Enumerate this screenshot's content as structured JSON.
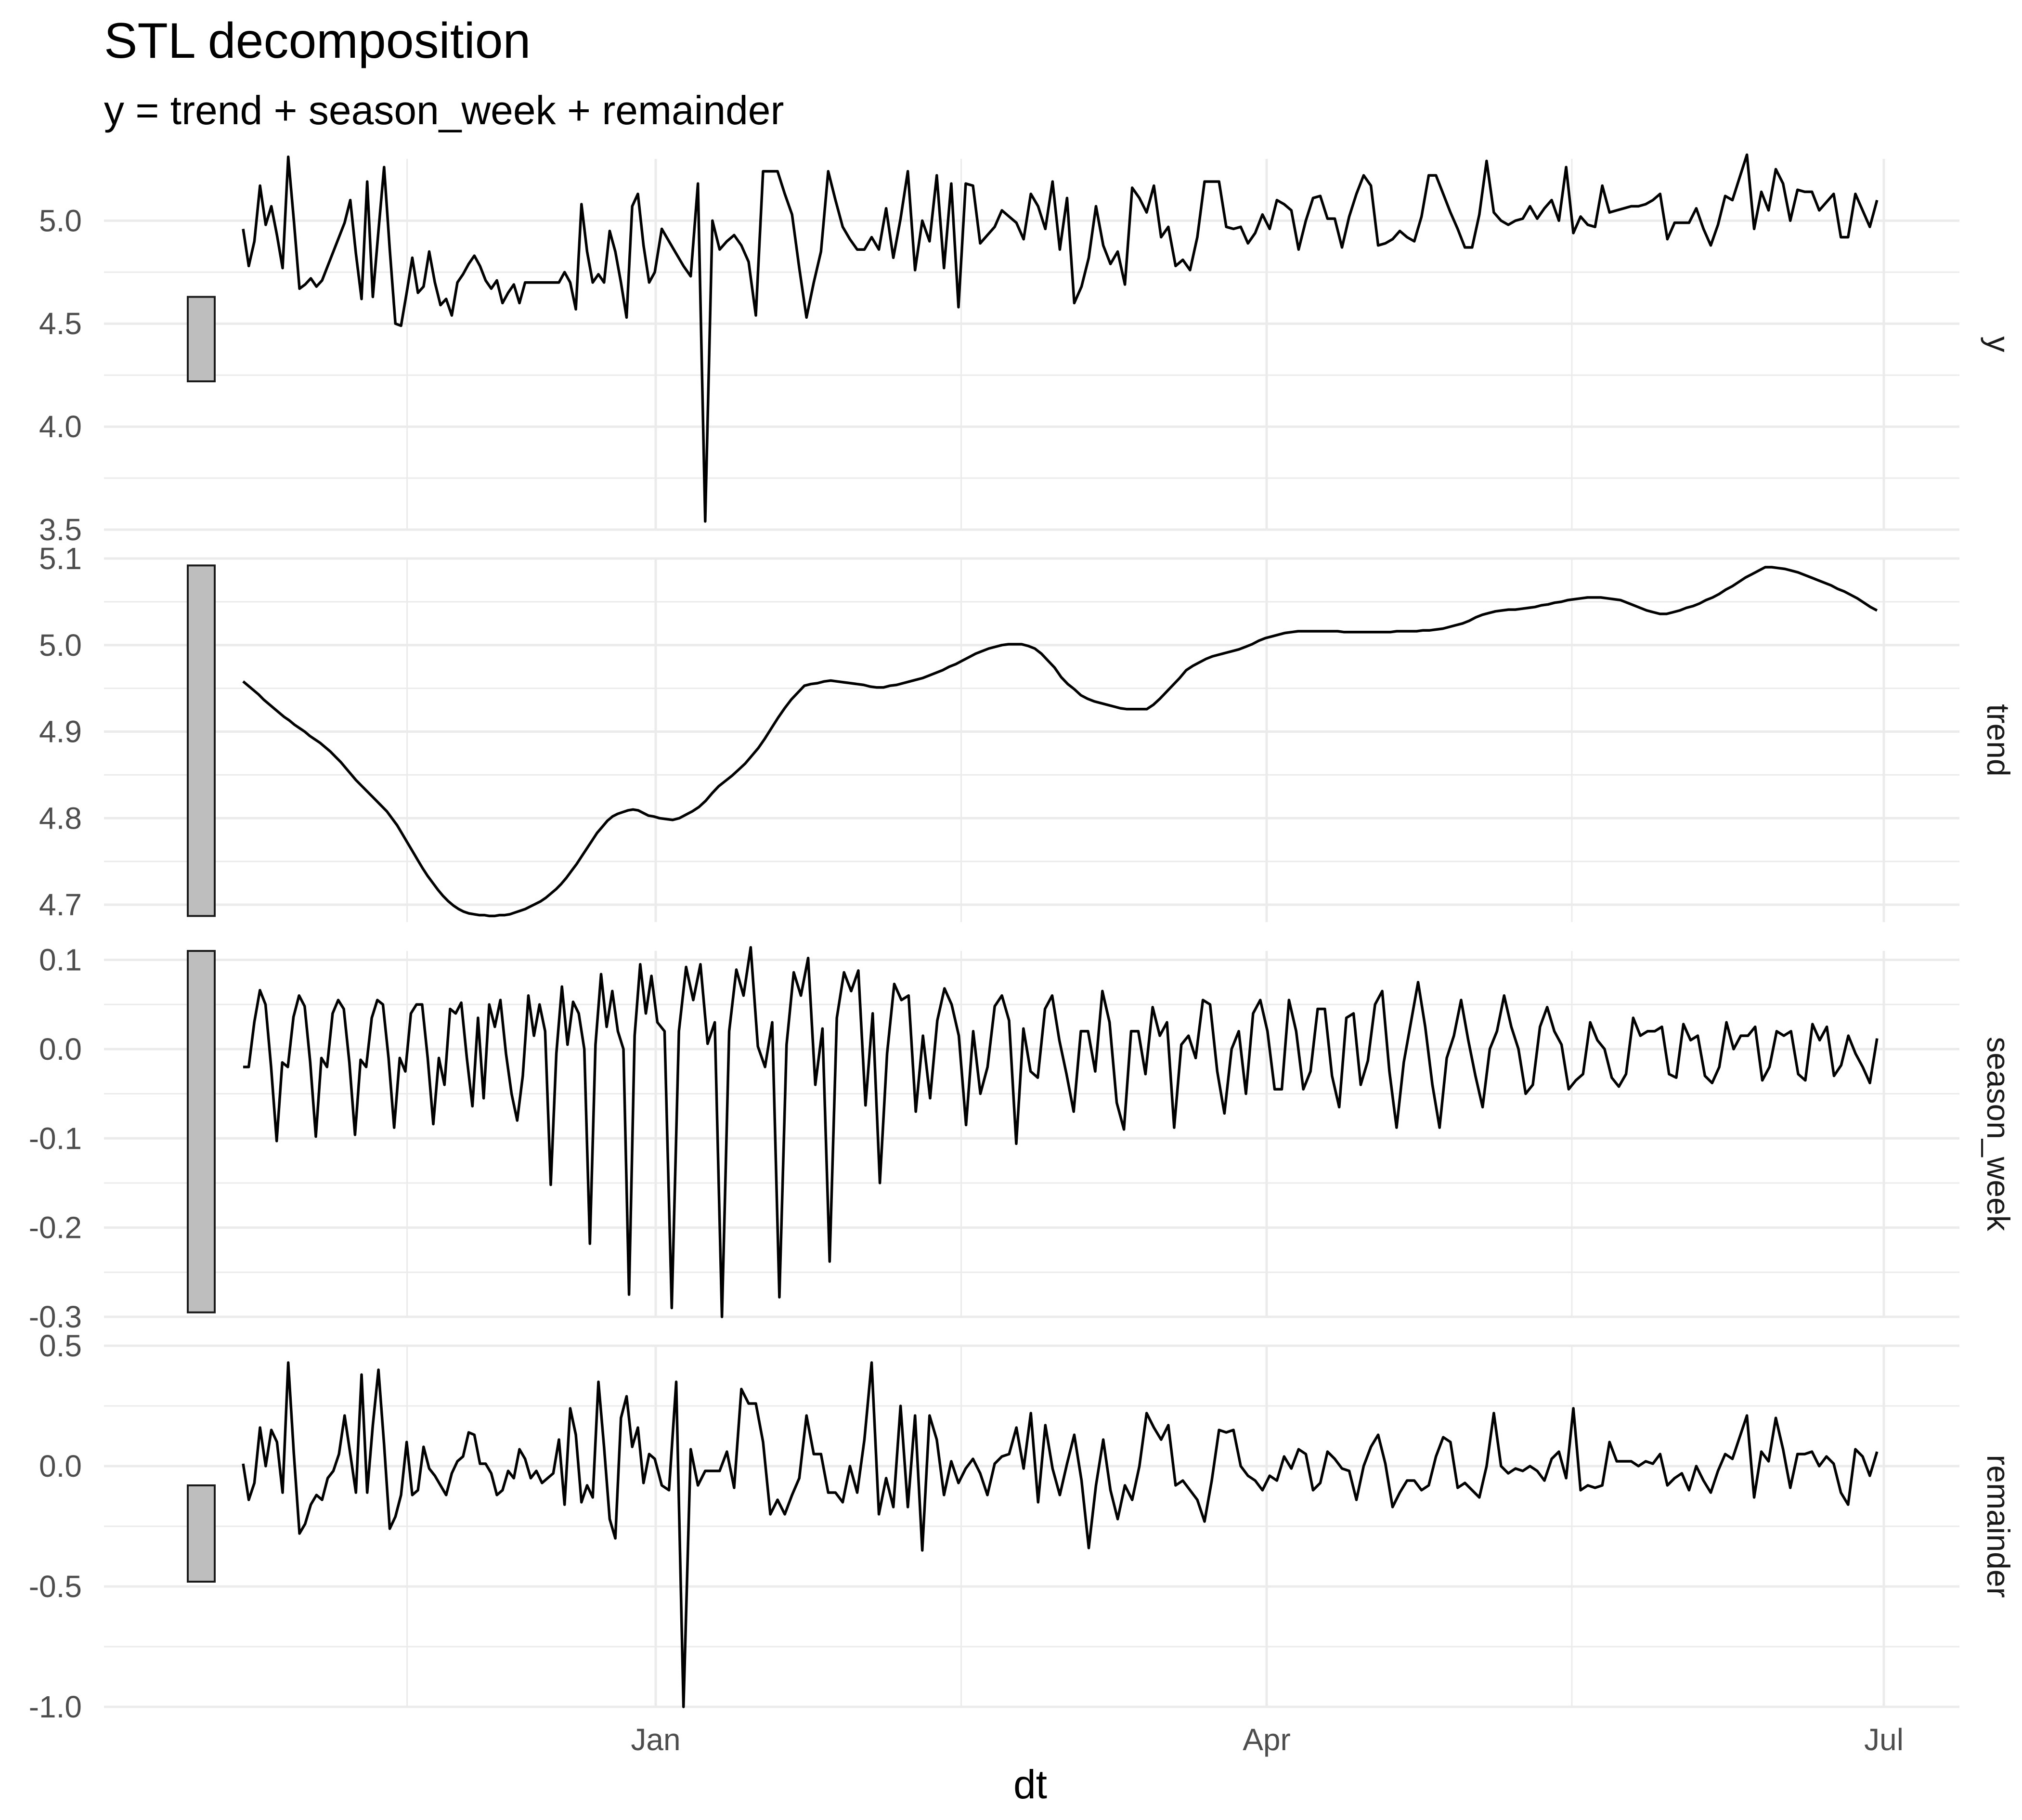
{
  "chart_data": {
    "type": "line",
    "title": "STL decomposition",
    "subtitle": "y = trend + season_week + remainder",
    "xlabel": "dt",
    "x_tick_labels": [
      "Jan",
      "Apr",
      "Jul"
    ],
    "x_start": "2022-10-15",
    "x_end": "2023-06-30",
    "grid": true,
    "panels": [
      {
        "name": "y",
        "ylim": [
          3.5,
          5.3
        ],
        "yticks": [
          "3.5",
          "4.0",
          "4.5",
          "5.0"
        ],
        "ytick_values": [
          3.5,
          4.0,
          4.5,
          5.0
        ],
        "scale_bar": [
          4.22,
          4.63
        ],
        "values": [
          4.96,
          4.78,
          4.9,
          5.17,
          4.98,
          5.07,
          4.93,
          4.77,
          5.31,
          5.0,
          4.67,
          4.69,
          4.72,
          4.68,
          4.71,
          4.78,
          4.85,
          4.92,
          4.99,
          5.1,
          4.84,
          4.62,
          5.19,
          4.63,
          4.95,
          5.26,
          4.86,
          4.5,
          4.49,
          4.65,
          4.82,
          4.65,
          4.68,
          4.85,
          4.7,
          4.59,
          4.62,
          4.54,
          4.7,
          4.74,
          4.79,
          4.83,
          4.78,
          4.71,
          4.67,
          4.71,
          4.6,
          4.65,
          4.69,
          4.6,
          4.7,
          4.7,
          4.7,
          4.7,
          4.7,
          4.7,
          4.7,
          4.75,
          4.7,
          4.57,
          5.08,
          4.85,
          4.7,
          4.74,
          4.7,
          4.95,
          4.85,
          4.7,
          4.53,
          5.07,
          5.13,
          4.88,
          4.7,
          4.75,
          4.96,
          4.9,
          4.84,
          4.78,
          4.73,
          5.18,
          3.54,
          5.0,
          4.86,
          4.9,
          4.93,
          4.88,
          4.8,
          4.54,
          5.24,
          5.24,
          5.24,
          5.13,
          5.03,
          4.77,
          4.53,
          4.7,
          4.85,
          5.24,
          5.1,
          4.97,
          4.91,
          4.86,
          4.86,
          4.92,
          4.86,
          5.06,
          4.82,
          5.01,
          5.24,
          4.76,
          5.0,
          4.9,
          5.22,
          4.77,
          5.18,
          4.58,
          5.18,
          5.17,
          4.89,
          4.93,
          4.97,
          5.05,
          5.02,
          4.99,
          4.91,
          5.13,
          5.07,
          4.96,
          5.19,
          4.86,
          5.11,
          4.6,
          4.68,
          4.82,
          5.07,
          4.88,
          4.79,
          4.85,
          4.69,
          5.16,
          5.11,
          5.04,
          5.17,
          4.92,
          4.97,
          4.78,
          4.81,
          4.76,
          4.92,
          5.19,
          5.19,
          5.19,
          4.97,
          4.96,
          4.97,
          4.89,
          4.94,
          5.03,
          4.96,
          5.1,
          5.08,
          5.05,
          4.86,
          5.0,
          5.11,
          5.12,
          5.01,
          5.01,
          4.87,
          5.02,
          5.13,
          5.22,
          5.17,
          4.88,
          4.89,
          4.91,
          4.95,
          4.92,
          4.9,
          5.02,
          5.22,
          5.22,
          5.13,
          5.04,
          4.96,
          4.87,
          4.87,
          5.03,
          5.29,
          5.04,
          5.0,
          4.98,
          5.0,
          5.01,
          5.07,
          5.01,
          5.06,
          5.1,
          5.0,
          5.26,
          4.94,
          5.02,
          4.98,
          4.97,
          5.17,
          5.04,
          5.05,
          5.06,
          5.07,
          5.07,
          5.08,
          5.1,
          5.13,
          4.91,
          4.99,
          4.99,
          4.99,
          5.06,
          4.96,
          4.88,
          4.98,
          5.12,
          5.1,
          5.21,
          5.32,
          4.96,
          5.14,
          5.05,
          5.25,
          5.18,
          5.0,
          5.15,
          5.14,
          5.14,
          5.05,
          5.09,
          5.13,
          4.92,
          4.92,
          5.13,
          5.05,
          4.97,
          5.1
        ]
      },
      {
        "name": "trend",
        "ylim": [
          4.68,
          5.1
        ],
        "yticks": [
          "4.7",
          "4.8",
          "4.9",
          "5.0",
          "5.1"
        ],
        "ytick_values": [
          4.7,
          4.8,
          4.9,
          5.0,
          5.1
        ],
        "scale_bar": [
          4.687,
          5.092
        ],
        "values": [
          4.958,
          4.953,
          4.948,
          4.943,
          4.937,
          4.932,
          4.927,
          4.922,
          4.917,
          4.913,
          4.908,
          4.904,
          4.9,
          4.895,
          4.891,
          4.887,
          4.882,
          4.877,
          4.871,
          4.865,
          4.858,
          4.851,
          4.844,
          4.838,
          4.832,
          4.826,
          4.82,
          4.814,
          4.808,
          4.8,
          4.792,
          4.782,
          4.772,
          4.762,
          4.752,
          4.742,
          4.733,
          4.725,
          4.717,
          4.71,
          4.704,
          4.699,
          4.695,
          4.692,
          4.69,
          4.689,
          4.688,
          4.688,
          4.687,
          4.687,
          4.688,
          4.688,
          4.689,
          4.691,
          4.693,
          4.695,
          4.698,
          4.701,
          4.704,
          4.708,
          4.713,
          4.718,
          4.724,
          4.731,
          4.739,
          4.747,
          4.756,
          4.765,
          4.774,
          4.783,
          4.79,
          4.797,
          4.802,
          4.805,
          4.807,
          4.809,
          4.81,
          4.809,
          4.806,
          4.803,
          4.802,
          4.8,
          4.799,
          4.798,
          4.8,
          4.804,
          4.808,
          4.813,
          4.82,
          4.829,
          4.837,
          4.843,
          4.849,
          4.856,
          4.863,
          4.872,
          4.881,
          4.892,
          4.904,
          4.916,
          4.927,
          4.937,
          4.945,
          4.953,
          4.955,
          4.956,
          4.958,
          4.959,
          4.958,
          4.957,
          4.956,
          4.955,
          4.954,
          4.952,
          4.951,
          4.951,
          4.953,
          4.954,
          4.956,
          4.958,
          4.96,
          4.962,
          4.965,
          4.968,
          4.971,
          4.975,
          4.978,
          4.982,
          4.986,
          4.99,
          4.993,
          4.996,
          4.998,
          5.0,
          5.001,
          5.001,
          5.001,
          4.999,
          4.996,
          4.99,
          4.982,
          4.974,
          4.963,
          4.955,
          4.949,
          4.942,
          4.938,
          4.935,
          4.933,
          4.931,
          4.929,
          4.927,
          4.926,
          4.926,
          4.926,
          4.926,
          4.931,
          4.938,
          4.946,
          4.954,
          4.962,
          4.971,
          4.976,
          4.98,
          4.984,
          4.987,
          4.989,
          4.991,
          4.993,
          4.995,
          4.998,
          5.001,
          5.005,
          5.008,
          5.01,
          5.012,
          5.014,
          5.015,
          5.016,
          5.016,
          5.016,
          5.016,
          5.016,
          5.016,
          5.016,
          5.015,
          5.015,
          5.015,
          5.015,
          5.015,
          5.015,
          5.015,
          5.015,
          5.016,
          5.016,
          5.016,
          5.016,
          5.017,
          5.017,
          5.018,
          5.019,
          5.021,
          5.023,
          5.025,
          5.028,
          5.032,
          5.035,
          5.037,
          5.039,
          5.04,
          5.041,
          5.041,
          5.042,
          5.043,
          5.044,
          5.046,
          5.047,
          5.049,
          5.05,
          5.052,
          5.053,
          5.054,
          5.055,
          5.055,
          5.055,
          5.054,
          5.053,
          5.052,
          5.049,
          5.046,
          5.043,
          5.04,
          5.038,
          5.036,
          5.036,
          5.038,
          5.04,
          5.043,
          5.045,
          5.048,
          5.052,
          5.055,
          5.059,
          5.064,
          5.068,
          5.073,
          5.078,
          5.082,
          5.086,
          5.09,
          5.09,
          5.089,
          5.088,
          5.086,
          5.084,
          5.081,
          5.078,
          5.075,
          5.072,
          5.069,
          5.065,
          5.062,
          5.058,
          5.054,
          5.049,
          5.044,
          5.04
        ]
      },
      {
        "name": "season_week",
        "ylim": [
          -0.3,
          0.11
        ],
        "yticks": [
          "-0.3",
          "-0.2",
          "-0.1",
          "0.0",
          "0.1"
        ],
        "ytick_values": [
          -0.3,
          -0.2,
          -0.1,
          0.0,
          0.1
        ],
        "scale_bar": [
          -0.295,
          0.11
        ],
        "values": [
          -0.02,
          -0.02,
          0.03,
          0.066,
          0.05,
          -0.02,
          -0.103,
          -0.015,
          -0.02,
          0.036,
          0.06,
          0.048,
          -0.015,
          -0.098,
          -0.01,
          -0.02,
          0.04,
          0.055,
          0.045,
          -0.015,
          -0.096,
          -0.012,
          -0.02,
          0.035,
          0.055,
          0.05,
          -0.01,
          -0.088,
          -0.01,
          -0.025,
          0.04,
          0.05,
          0.05,
          -0.01,
          -0.084,
          -0.01,
          -0.04,
          0.045,
          0.04,
          0.052,
          -0.01,
          -0.064,
          0.035,
          -0.055,
          0.05,
          0.025,
          0.055,
          -0.005,
          -0.05,
          -0.08,
          -0.03,
          0.06,
          0.015,
          0.05,
          0.02,
          -0.152,
          -0.005,
          0.07,
          0.005,
          0.053,
          0.04,
          0.0,
          -0.218,
          0.005,
          0.084,
          0.025,
          0.065,
          0.02,
          0.0,
          -0.275,
          0.015,
          0.095,
          0.04,
          0.082,
          0.03,
          0.02,
          -0.29,
          0.02,
          0.092,
          0.055,
          0.095,
          0.006,
          0.03,
          -0.3,
          0.02,
          0.089,
          0.06,
          0.114,
          0.003,
          -0.02,
          0.03,
          -0.278,
          0.005,
          0.086,
          0.06,
          0.102,
          -0.04,
          0.023,
          -0.238,
          0.035,
          0.086,
          0.065,
          0.088,
          -0.063,
          0.04,
          -0.15,
          -0.005,
          0.073,
          0.055,
          0.06,
          -0.07,
          0.015,
          -0.055,
          0.032,
          0.068,
          0.05,
          0.015,
          -0.085,
          0.02,
          -0.05,
          -0.02,
          0.048,
          0.06,
          0.032,
          -0.106,
          0.023,
          -0.025,
          -0.032,
          0.045,
          0.06,
          0.01,
          -0.028,
          -0.07,
          0.02,
          0.02,
          -0.025,
          0.065,
          0.03,
          -0.06,
          -0.09,
          0.02,
          0.02,
          -0.028,
          0.047,
          0.015,
          0.03,
          -0.088,
          0.005,
          0.015,
          -0.01,
          0.055,
          0.05,
          -0.025,
          -0.072,
          0.0,
          0.02,
          -0.05,
          0.04,
          0.055,
          0.02,
          -0.045,
          -0.045,
          0.055,
          0.02,
          -0.045,
          -0.025,
          0.045,
          0.045,
          -0.03,
          -0.065,
          0.035,
          0.04,
          -0.04,
          -0.013,
          0.05,
          0.065,
          -0.025,
          -0.088,
          -0.015,
          0.03,
          0.075,
          0.025,
          -0.04,
          -0.088,
          -0.01,
          0.015,
          0.055,
          0.01,
          -0.03,
          -0.065,
          0.0,
          0.02,
          0.06,
          0.025,
          0.0,
          -0.05,
          -0.04,
          0.025,
          0.047,
          0.02,
          0.005,
          -0.045,
          -0.035,
          -0.028,
          0.03,
          0.01,
          0.0,
          -0.032,
          -0.042,
          -0.028,
          0.035,
          0.015,
          0.02,
          0.02,
          0.025,
          -0.028,
          -0.032,
          0.028,
          0.01,
          0.015,
          -0.03,
          -0.038,
          -0.02,
          0.03,
          0.0,
          0.015,
          0.015,
          0.025,
          -0.035,
          -0.02,
          0.02,
          0.015,
          0.02,
          -0.028,
          -0.035,
          0.028,
          0.01,
          0.025,
          -0.03,
          -0.018,
          0.015,
          -0.005,
          -0.02,
          -0.038,
          0.012
        ]
      },
      {
        "name": "remainder",
        "ylim": [
          -1.0,
          0.5
        ],
        "yticks": [
          "-1.0",
          "-0.5",
          "0.0",
          "0.5"
        ],
        "ytick_values": [
          -1.0,
          -0.5,
          0.0,
          0.5
        ],
        "scale_bar": [
          -0.48,
          -0.08
        ],
        "values": [
          0.01,
          -0.14,
          -0.07,
          0.16,
          0.0,
          0.15,
          0.1,
          -0.11,
          0.43,
          0.05,
          -0.28,
          -0.24,
          -0.16,
          -0.12,
          -0.14,
          -0.05,
          -0.02,
          0.05,
          0.21,
          0.05,
          -0.11,
          0.38,
          -0.11,
          0.17,
          0.4,
          0.09,
          -0.26,
          -0.21,
          -0.12,
          0.1,
          -0.12,
          -0.1,
          0.08,
          -0.01,
          -0.04,
          -0.08,
          -0.12,
          -0.03,
          0.02,
          0.04,
          0.14,
          0.13,
          0.01,
          0.01,
          -0.03,
          -0.12,
          -0.1,
          -0.02,
          -0.05,
          0.07,
          0.03,
          -0.05,
          -0.02,
          -0.07,
          -0.05,
          -0.03,
          0.11,
          -0.16,
          0.24,
          0.13,
          -0.15,
          -0.08,
          -0.13,
          0.35,
          0.08,
          -0.22,
          -0.3,
          0.2,
          0.29,
          0.08,
          0.16,
          -0.07,
          0.05,
          0.03,
          -0.08,
          -0.1,
          0.35,
          -1.0,
          0.07,
          -0.08,
          -0.02,
          -0.02,
          -0.02,
          0.06,
          -0.09,
          0.32,
          0.26,
          0.26,
          0.1,
          -0.2,
          -0.14,
          -0.2,
          -0.12,
          -0.05,
          0.21,
          0.05,
          0.05,
          -0.11,
          -0.11,
          -0.15,
          0.0,
          -0.11,
          0.11,
          0.43,
          -0.2,
          -0.05,
          -0.17,
          0.25,
          -0.17,
          0.21,
          -0.35,
          0.21,
          0.11,
          -0.12,
          0.02,
          -0.07,
          -0.01,
          0.03,
          -0.03,
          -0.12,
          0.01,
          0.04,
          0.05,
          0.16,
          -0.01,
          0.22,
          -0.15,
          0.17,
          -0.01,
          -0.12,
          0.01,
          0.13,
          -0.06,
          -0.34,
          -0.08,
          0.11,
          -0.1,
          -0.22,
          -0.08,
          -0.14,
          0.0,
          0.22,
          0.16,
          0.11,
          0.17,
          -0.08,
          -0.06,
          -0.1,
          -0.14,
          -0.23,
          -0.06,
          0.15,
          0.14,
          0.15,
          0.0,
          -0.04,
          -0.06,
          -0.1,
          -0.04,
          -0.06,
          0.04,
          -0.01,
          0.07,
          0.05,
          -0.1,
          -0.07,
          0.06,
          0.03,
          -0.01,
          -0.02,
          -0.14,
          0.0,
          0.08,
          0.13,
          0.01,
          -0.17,
          -0.11,
          -0.06,
          -0.06,
          -0.1,
          -0.08,
          0.04,
          0.12,
          0.1,
          -0.09,
          -0.07,
          -0.1,
          -0.13,
          0.0,
          0.22,
          0.0,
          -0.03,
          -0.01,
          -0.02,
          0.0,
          -0.02,
          -0.06,
          0.03,
          0.06,
          -0.05,
          0.24,
          -0.1,
          -0.08,
          -0.09,
          -0.08,
          0.1,
          0.02,
          0.02,
          0.02,
          0.0,
          0.02,
          0.01,
          0.05,
          -0.08,
          -0.05,
          -0.03,
          -0.1,
          0.0,
          -0.06,
          -0.11,
          -0.02,
          0.05,
          0.03,
          0.12,
          0.21,
          -0.13,
          0.06,
          0.02,
          0.2,
          0.07,
          -0.09,
          0.05,
          0.05,
          0.06,
          0.0,
          0.04,
          0.01,
          -0.11,
          -0.16,
          0.07,
          0.04,
          -0.04,
          0.06
        ]
      }
    ]
  },
  "colors": {
    "line": "#000000",
    "grid": "#ebebeb",
    "scale_bar_fill": "#bebebe",
    "scale_bar_stroke": "#1a1a1a",
    "tick_text": "#4d4d4d"
  }
}
